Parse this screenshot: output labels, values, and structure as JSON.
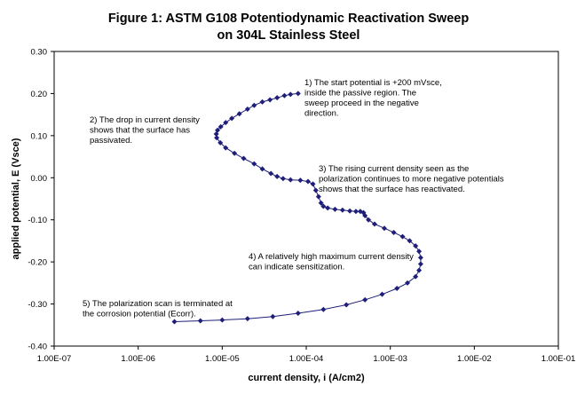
{
  "chart_data": {
    "type": "scatter",
    "title_line1": "Figure 1:  ASTM G108 Potentiodynamic Reactivation Sweep",
    "title_line2": "on 304L Stainless Steel",
    "xlabel": "current density, i (A/cm2)",
    "ylabel": "applied potential, E (Vsce)",
    "x_scale": "log",
    "xlim": [
      1e-07,
      0.1
    ],
    "ylim": [
      -0.4,
      0.3
    ],
    "x_ticks": [
      "1.00E-07",
      "1.00E-06",
      "1.00E-05",
      "1.00E-04",
      "1.00E-03",
      "1.00E-02",
      "1.00E-01"
    ],
    "y_ticks": [
      "0.30",
      "0.20",
      "0.10",
      "0.00",
      "-0.10",
      "-0.20",
      "-0.30",
      "-0.40"
    ],
    "series_color": "#1f1f7a",
    "series": [
      {
        "x": [
          8e-05,
          6.5e-05,
          5.5e-05,
          4.5e-05,
          3.7e-05,
          3e-05,
          2.4e-05,
          2e-05,
          1.6e-05,
          1.3e-05,
          1.1e-05,
          9.6e-06,
          8.8e-06,
          8.5e-06,
          8.6e-06,
          9.5e-06,
          1.1e-05,
          1.4e-05,
          1.8e-05,
          2.4e-05,
          3e-05,
          3.8e-05,
          4.5e-05,
          5.3e-05,
          6.5e-05,
          8.5e-05,
          0.000105,
          0.00012,
          0.00013,
          0.00014,
          0.00015,
          0.00016,
          0.00018,
          0.00022,
          0.00027,
          0.00033,
          0.00039,
          0.00044,
          0.00048,
          0.0005,
          0.00055,
          0.00065,
          0.00085,
          0.0011,
          0.0014,
          0.0017,
          0.002,
          0.0022,
          0.0023,
          0.0023,
          0.0022,
          0.002,
          0.0016,
          0.0012,
          0.0008,
          0.0005,
          0.0003,
          0.00016,
          8e-05,
          4e-05,
          2e-05,
          1e-05,
          5.5e-06,
          2.7e-06
        ],
        "y": [
          0.2,
          0.198,
          0.195,
          0.19,
          0.185,
          0.18,
          0.172,
          0.163,
          0.152,
          0.141,
          0.131,
          0.121,
          0.113,
          0.104,
          0.095,
          0.083,
          0.071,
          0.058,
          0.046,
          0.033,
          0.021,
          0.01,
          0.003,
          -0.002,
          -0.005,
          -0.006,
          -0.009,
          -0.015,
          -0.03,
          -0.045,
          -0.06,
          -0.068,
          -0.072,
          -0.075,
          -0.077,
          -0.079,
          -0.08,
          -0.08,
          -0.083,
          -0.09,
          -0.1,
          -0.11,
          -0.12,
          -0.13,
          -0.14,
          -0.15,
          -0.162,
          -0.175,
          -0.19,
          -0.205,
          -0.22,
          -0.235,
          -0.25,
          -0.263,
          -0.277,
          -0.29,
          -0.302,
          -0.313,
          -0.322,
          -0.33,
          -0.335,
          -0.338,
          -0.34,
          -0.342
        ]
      }
    ],
    "annotations": [
      {
        "lines": [
          "1) The start potential is +200 mVsce,",
          "inside the passive region. The",
          "sweep proceed in the negative",
          "direction."
        ]
      },
      {
        "lines": [
          "2) The drop in current density",
          "shows that the surface has",
          "passivated."
        ]
      },
      {
        "lines": [
          "3) The rising current density seen as the",
          "polarization continues to more negative potentials",
          "shows that the surface has reactivated."
        ]
      },
      {
        "lines": [
          "4) A relatively high maximum current density",
          "can indicate sensitization."
        ]
      },
      {
        "lines": [
          "5) The polarization scan is terminated at",
          "the corrosion potential (Ecorr)."
        ]
      }
    ]
  }
}
